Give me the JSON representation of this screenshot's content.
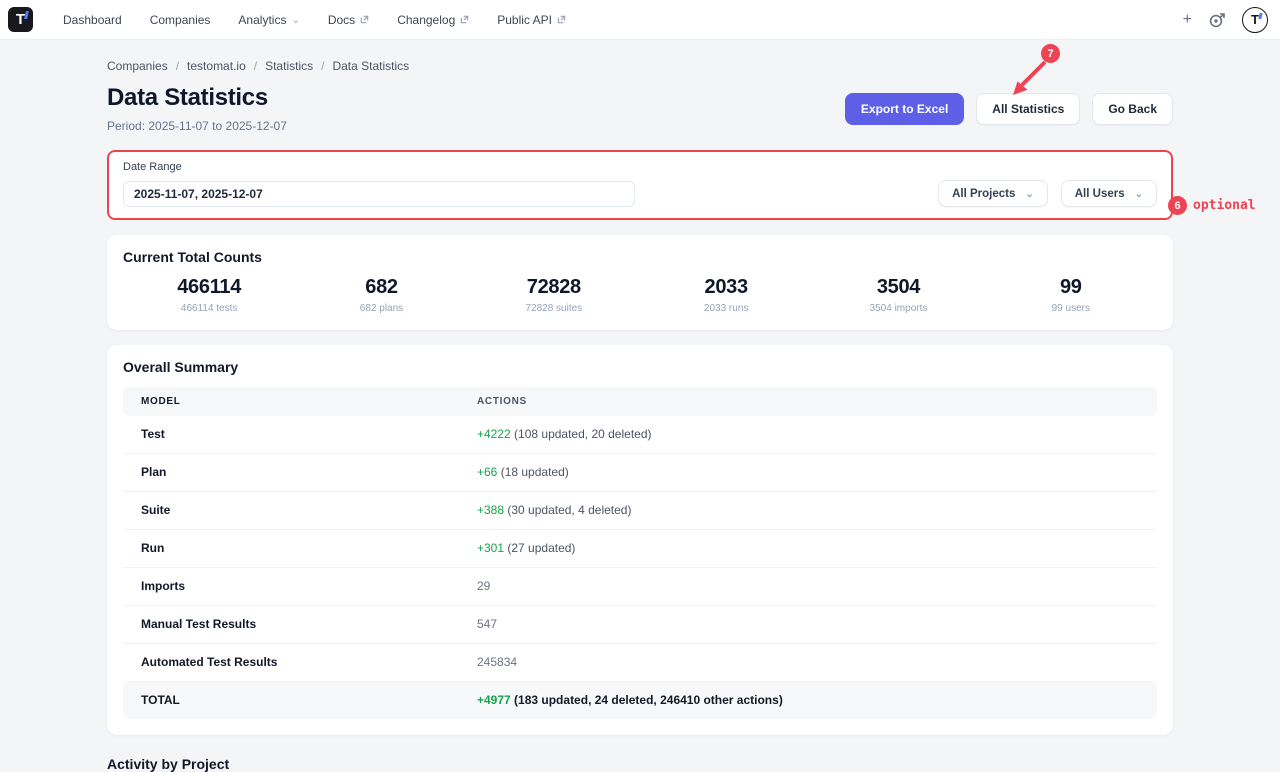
{
  "nav": {
    "logo_letter": "T",
    "items": [
      {
        "label": "Dashboard",
        "chevron": false,
        "external": false
      },
      {
        "label": "Companies",
        "chevron": false,
        "external": false
      },
      {
        "label": "Analytics",
        "chevron": true,
        "external": false
      },
      {
        "label": "Docs",
        "chevron": false,
        "external": true
      },
      {
        "label": "Changelog",
        "chevron": false,
        "external": true
      },
      {
        "label": "Public API",
        "chevron": false,
        "external": true
      }
    ],
    "plus_label": "+",
    "avatar_letter": "T"
  },
  "breadcrumb": [
    "Companies",
    "testomat.io",
    "Statistics",
    "Data Statistics"
  ],
  "header": {
    "title": "Data Statistics",
    "period": "Period: 2025-11-07 to 2025-12-07",
    "export_button": "Export to Excel",
    "all_statistics_button": "All Statistics",
    "go_back_button": "Go Back"
  },
  "annotations": {
    "step7": "7",
    "step6": "6",
    "optional_label": "optional",
    "color": "#ee4353"
  },
  "filters": {
    "date_range_label": "Date Range",
    "date_range_value": "2025-11-07, 2025-12-07",
    "projects_dropdown": "All Projects",
    "users_dropdown": "All Users"
  },
  "totals": {
    "title": "Current Total Counts",
    "stats": [
      {
        "value": "466114",
        "label": "466114 tests"
      },
      {
        "value": "682",
        "label": "682 plans"
      },
      {
        "value": "72828",
        "label": "72828 suites"
      },
      {
        "value": "2033",
        "label": "2033 runs"
      },
      {
        "value": "3504",
        "label": "3504 imports"
      },
      {
        "value": "99",
        "label": "99 users"
      }
    ]
  },
  "summary": {
    "title": "Overall Summary",
    "columns": [
      "Model",
      "Actions"
    ],
    "rows": [
      {
        "model": "Test",
        "added": "+4222",
        "details": "(108 updated, 20 deleted)",
        "total": false
      },
      {
        "model": "Plan",
        "added": "+66",
        "details": "(18 updated)",
        "total": false
      },
      {
        "model": "Suite",
        "added": "+388",
        "details": "(30 updated, 4 deleted)",
        "total": false
      },
      {
        "model": "Run",
        "added": "+301",
        "details": "(27 updated)",
        "total": false
      },
      {
        "model": "Imports",
        "added": "",
        "details": "29",
        "total": false
      },
      {
        "model": "Manual Test Results",
        "added": "",
        "details": "547",
        "total": false
      },
      {
        "model": "Automated Test Results",
        "added": "",
        "details": "245834",
        "total": false
      },
      {
        "model": "TOTAL",
        "added": "+4977",
        "details": "(183 updated, 24 deleted, 246410 other actions)",
        "total": true
      }
    ]
  },
  "next_section": {
    "title": "Activity by Project"
  },
  "colors": {
    "accent": "#5d5fe6",
    "positive": "#16a34a",
    "annotation": "#ee4353"
  }
}
